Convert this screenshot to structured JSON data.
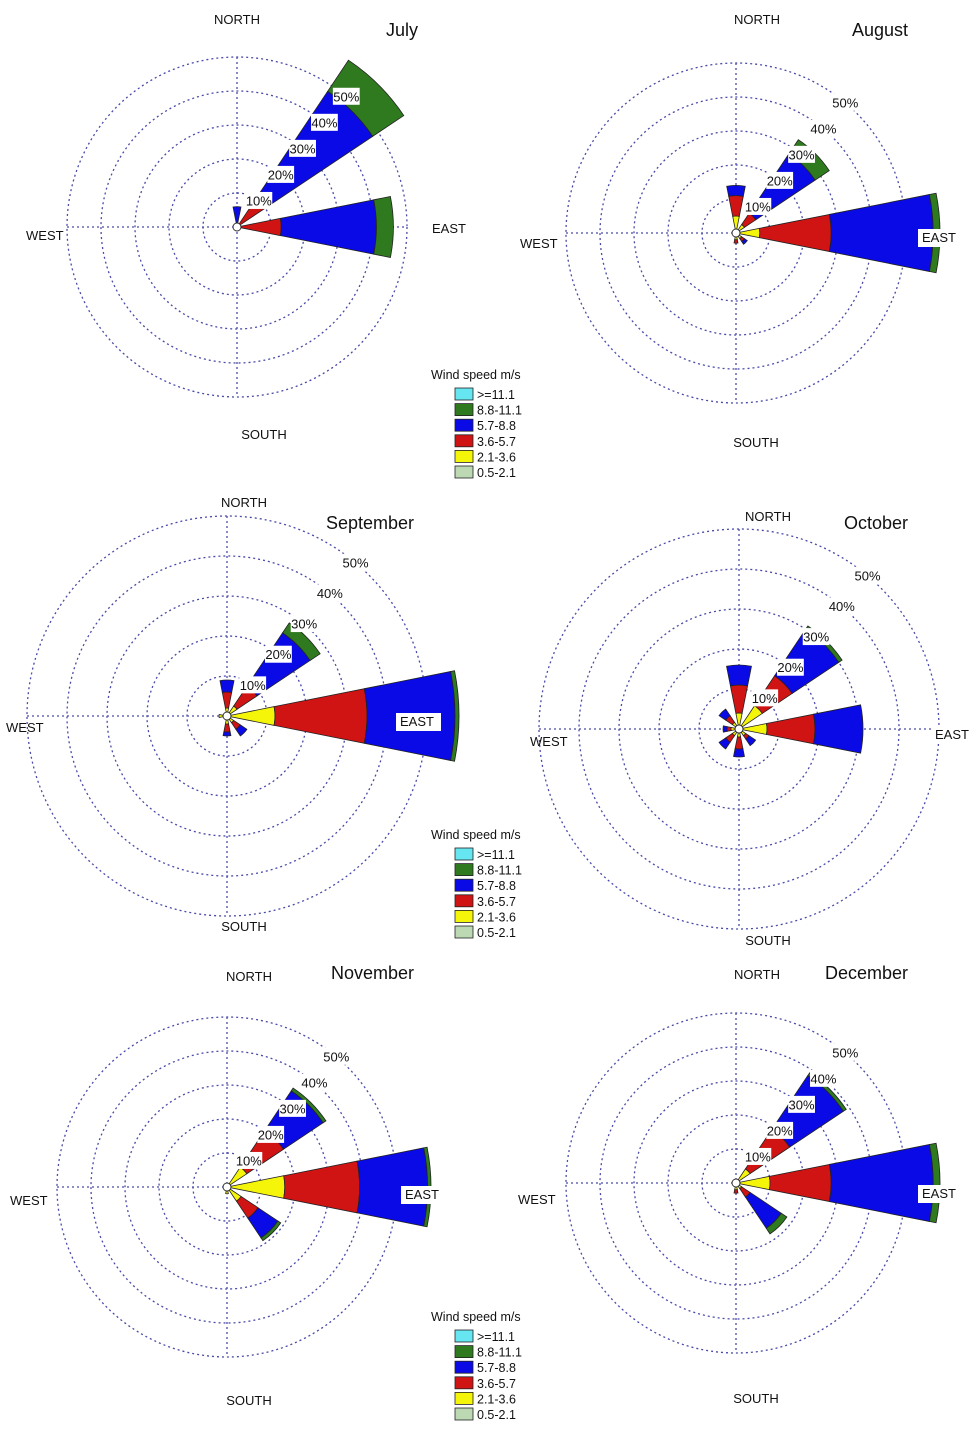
{
  "legend": {
    "title": "Wind speed m/s",
    "items": [
      {
        "label": ">=11.1",
        "color": "#66e6f0"
      },
      {
        "label": "8.8-11.1",
        "color": "#2f7a1f"
      },
      {
        "label": "5.7-8.8",
        "color": "#0a0ae6"
      },
      {
        "label": "3.6-5.7",
        "color": "#d01414"
      },
      {
        "label": "2.1-3.6",
        "color": "#f5f50a"
      },
      {
        "label": "0.5-2.1",
        "color": "#bcd9b4"
      }
    ]
  },
  "compass": {
    "north": "NORTH",
    "south": "SOUTH",
    "east": "EAST",
    "west": "WEST"
  },
  "chart_data": [
    {
      "type": "windrose",
      "title": "July",
      "radial_labels": [
        "10%",
        "20%",
        "30%",
        "40%",
        "50%"
      ],
      "speed_bins": [
        "0.5-2.1",
        "2.1-3.6",
        "3.6-5.7",
        "5.7-8.8",
        "8.8-11.1",
        ">=11.1"
      ],
      "petals": [
        {
          "direction": "N",
          "values": [
            1,
            0,
            0,
            5,
            0,
            0
          ]
        },
        {
          "direction": "NE",
          "values": [
            1,
            0,
            10,
            37,
            11,
            0
          ]
        },
        {
          "direction": "E",
          "values": [
            1,
            0,
            12,
            28,
            5,
            0
          ]
        }
      ]
    },
    {
      "type": "windrose",
      "title": "August",
      "radial_labels": [
        "10%",
        "20%",
        "30%",
        "40%",
        "50%"
      ],
      "speed_bins": [
        "0.5-2.1",
        "2.1-3.6",
        "3.6-5.7",
        "5.7-8.8",
        "8.8-11.1",
        ">=11.1"
      ],
      "petals": [
        {
          "direction": "N",
          "values": [
            1,
            4,
            6,
            3,
            0,
            0
          ]
        },
        {
          "direction": "NE",
          "values": [
            1,
            2,
            4,
            21,
            5,
            0
          ]
        },
        {
          "direction": "E",
          "values": [
            1,
            6,
            21,
            30,
            2,
            0
          ]
        },
        {
          "direction": "SE",
          "values": [
            1,
            1,
            1,
            1,
            0,
            0
          ]
        },
        {
          "direction": "S",
          "values": [
            1,
            1,
            1,
            0,
            0,
            0
          ]
        }
      ]
    },
    {
      "type": "windrose",
      "title": "September",
      "radial_labels": [
        "10%",
        "20%",
        "30%",
        "40%",
        "50%"
      ],
      "speed_bins": [
        "0.5-2.1",
        "2.1-3.6",
        "3.6-5.7",
        "5.7-8.8",
        "8.8-11.1",
        ">=11.1"
      ],
      "petals": [
        {
          "direction": "N",
          "values": [
            1,
            1,
            4,
            3,
            0,
            0
          ]
        },
        {
          "direction": "NE",
          "values": [
            1,
            2,
            6,
            16,
            3,
            0
          ]
        },
        {
          "direction": "E",
          "values": [
            1,
            11,
            23,
            22,
            1,
            0
          ]
        },
        {
          "direction": "SE",
          "values": [
            1,
            1,
            2,
            2,
            0,
            0
          ]
        },
        {
          "direction": "S",
          "values": [
            1,
            1,
            2,
            1,
            0,
            0
          ]
        },
        {
          "direction": "W",
          "values": [
            1,
            1,
            0,
            0,
            0,
            0
          ]
        }
      ]
    },
    {
      "type": "windrose",
      "title": "October",
      "radial_labels": [
        "10%",
        "20%",
        "30%",
        "40%",
        "50%"
      ],
      "speed_bins": [
        "0.5-2.1",
        "2.1-3.6",
        "3.6-5.7",
        "5.7-8.8",
        "8.8-11.1",
        ">=11.1"
      ],
      "petals": [
        {
          "direction": "N",
          "values": [
            1,
            3,
            7,
            5,
            0,
            0
          ]
        },
        {
          "direction": "NE",
          "values": [
            1,
            6,
            9,
            14,
            1,
            0
          ]
        },
        {
          "direction": "E",
          "values": [
            1,
            6,
            12,
            12,
            0,
            0
          ]
        },
        {
          "direction": "SE",
          "values": [
            1,
            1,
            1,
            2,
            0,
            0
          ]
        },
        {
          "direction": "S",
          "values": [
            1,
            1,
            3,
            2,
            0,
            0
          ]
        },
        {
          "direction": "SW",
          "values": [
            1,
            1,
            2,
            2,
            0,
            0
          ]
        },
        {
          "direction": "W",
          "values": [
            1,
            1,
            1,
            1,
            0,
            0
          ]
        },
        {
          "direction": "NW",
          "values": [
            1,
            1,
            2,
            2,
            0,
            0
          ]
        }
      ]
    },
    {
      "type": "windrose",
      "title": "November",
      "radial_labels": [
        "10%",
        "20%",
        "30%",
        "40%",
        "50%"
      ],
      "speed_bins": [
        "0.5-2.1",
        "2.1-3.6",
        "3.6-5.7",
        "5.7-8.8",
        "8.8-11.1",
        ">=11.1"
      ],
      "petals": [
        {
          "direction": "NE",
          "values": [
            1,
            6,
            13,
            14,
            1,
            0
          ]
        },
        {
          "direction": "E",
          "values": [
            1,
            16,
            22,
            20,
            1,
            0
          ]
        },
        {
          "direction": "SE",
          "values": [
            1,
            4,
            6,
            7,
            1,
            0
          ]
        },
        {
          "direction": "S",
          "values": [
            1,
            1,
            0,
            0,
            0,
            0
          ]
        }
      ]
    },
    {
      "type": "windrose",
      "title": "December",
      "radial_labels": [
        "10%",
        "20%",
        "30%",
        "40%",
        "50%"
      ],
      "speed_bins": [
        "0.5-2.1",
        "2.1-3.6",
        "3.6-5.7",
        "5.7-8.8",
        "8.8-11.1",
        ">=11.1"
      ],
      "petals": [
        {
          "direction": "NE",
          "values": [
            1,
            4,
            14,
            19,
            1,
            0
          ]
        },
        {
          "direction": "E",
          "values": [
            1,
            9,
            18,
            30,
            2,
            0
          ]
        },
        {
          "direction": "SE",
          "values": [
            1,
            1,
            3,
            11,
            2,
            0
          ]
        },
        {
          "direction": "S",
          "values": [
            1,
            1,
            1,
            0,
            0,
            0
          ]
        }
      ]
    }
  ]
}
